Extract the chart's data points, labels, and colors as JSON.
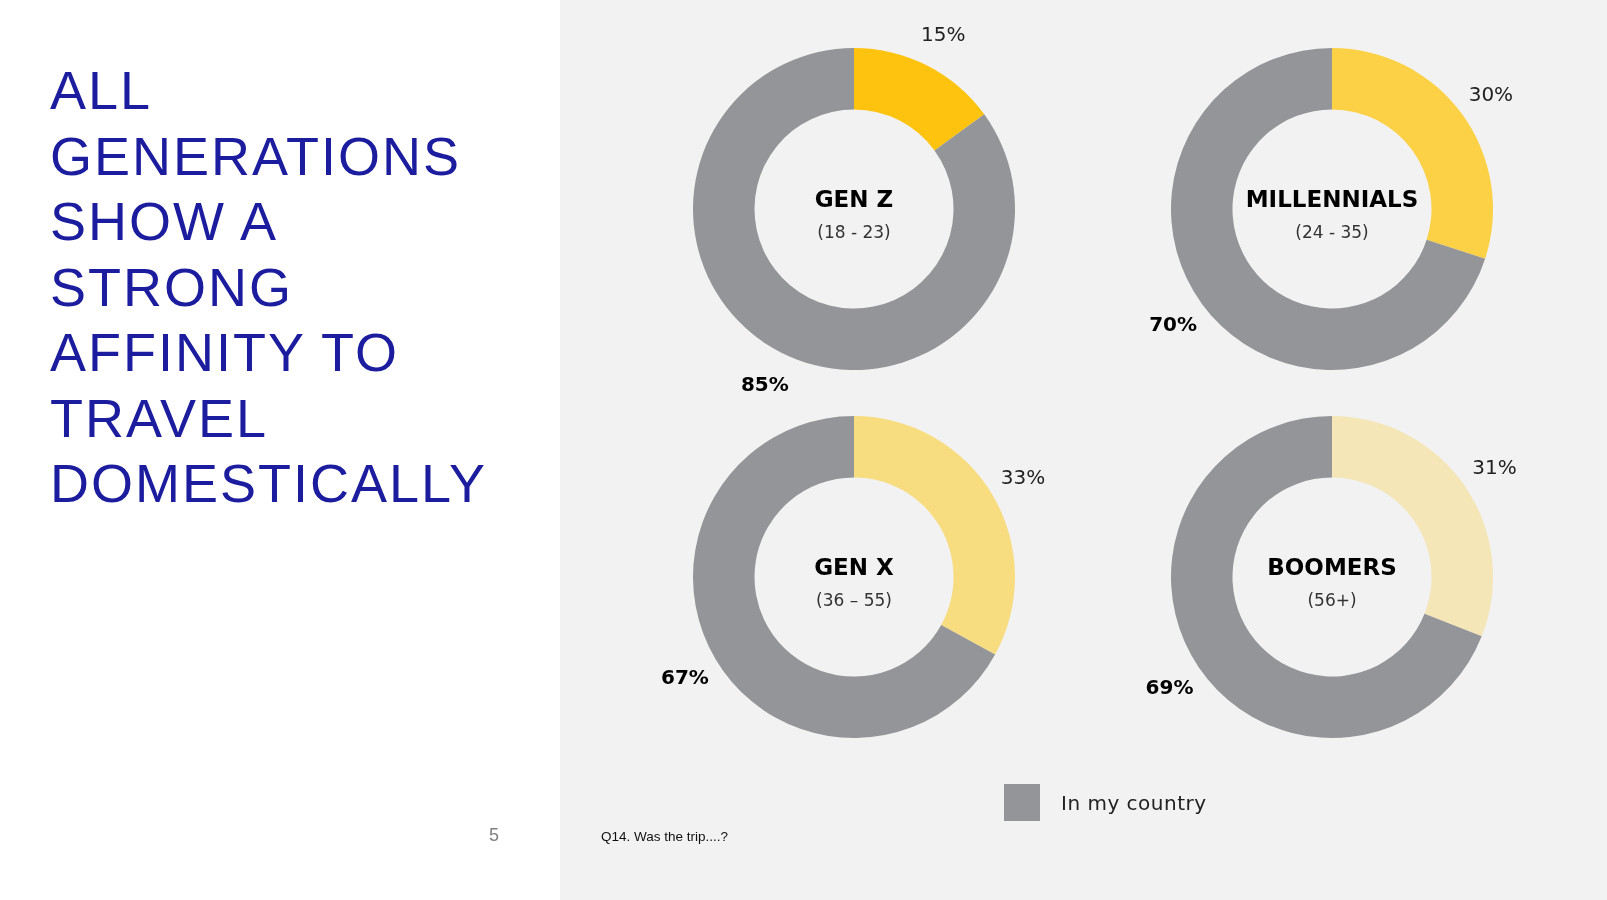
{
  "chart_data": [
    {
      "type": "other",
      "title": "ALL GENERATIONS SHOW A STRONG AFFINITY TO TRAVEL DOMESTICALLY",
      "annotations": [
        "5",
        "Q14. Was the trip....?"
      ]
    },
    {
      "type": "donut",
      "title": "GEN Z",
      "subtitle": "(18 - 23)",
      "categories": [
        null,
        null
      ],
      "values": [
        15,
        85
      ],
      "colors": [
        "#fdc30f",
        "#939598"
      ],
      "value_labels": [
        "15%",
        "85%"
      ]
    },
    {
      "type": "donut",
      "title": "MILLENNIALS",
      "subtitle": "(24 - 35)",
      "categories": [
        null,
        null
      ],
      "values": [
        30,
        70
      ],
      "colors": [
        "#fcd146",
        "#939598"
      ],
      "value_labels": [
        "30%",
        "70%"
      ]
    },
    {
      "type": "donut",
      "title": "GEN X",
      "subtitle": "(36 – 55)",
      "categories": [
        null,
        null
      ],
      "values": [
        33,
        67
      ],
      "colors": [
        "#f8dc80",
        "#939598"
      ],
      "value_labels": [
        "33%",
        "67%"
      ]
    },
    {
      "type": "donut",
      "title": "BOOMERS",
      "subtitle": "(56+)",
      "categories": [
        null,
        "In my country"
      ],
      "values": [
        31,
        69
      ],
      "colors": [
        "#f4e6b7",
        "#939598"
      ],
      "value_labels": [
        "31%",
        "69%"
      ],
      "legend": "bottom"
    }
  ]
}
